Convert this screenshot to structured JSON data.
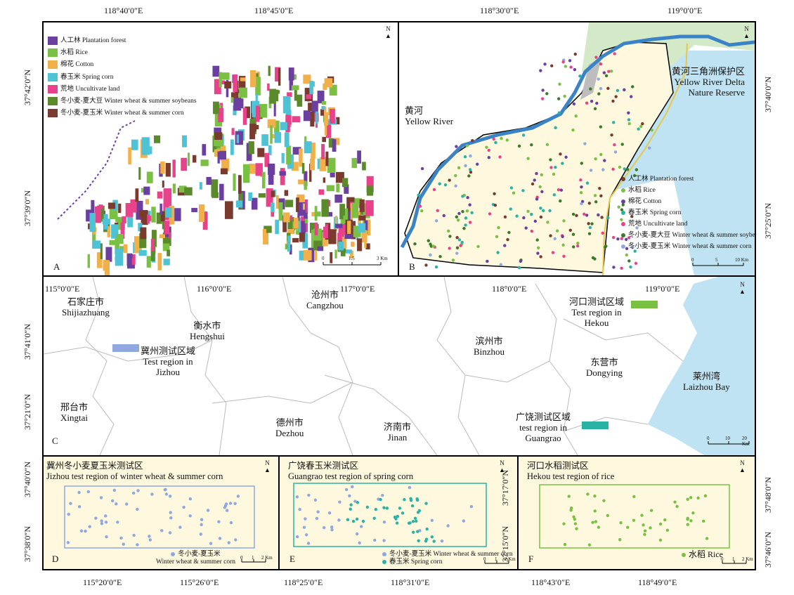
{
  "top_ticks": [
    "118°40′0″E",
    "118°45′0″E",
    "118°30′0″E",
    "119°0′0″E"
  ],
  "left_ticks_a": [
    "37°42′0″N",
    "37°39′0″N"
  ],
  "right_ticks_b": [
    "37°40′0″N",
    "37°25′0″N"
  ],
  "legend_a": [
    {
      "label": "人工林 Plantation forest",
      "color": "#6b3fa0"
    },
    {
      "label": "水稻 Rice",
      "color": "#7ac143"
    },
    {
      "label": "棉花 Cotton",
      "color": "#f2b04a"
    },
    {
      "label": "春玉米 Spring corn",
      "color": "#4fc3d6"
    },
    {
      "label": "荒地 Uncultivate land",
      "color": "#e8438a"
    },
    {
      "label": "冬小麦-夏大豆 Winter wheat & summer soybeans",
      "color": "#5a8a2a"
    },
    {
      "label": "冬小麦-夏玉米 Winter wheat & summer corn",
      "color": "#7a3b2e"
    }
  ],
  "legend_b": [
    {
      "label": "人工林 Plantation forest",
      "color": "#7a3b2e"
    },
    {
      "label": "水稻 Rice",
      "color": "#7ac143"
    },
    {
      "label": "棉花 Cotton",
      "color": "#6b3fa0"
    },
    {
      "label": "春玉米 Spring corn",
      "color": "#2ab3a5"
    },
    {
      "label": "荒地 Uncultivate land",
      "color": "#e8438a"
    },
    {
      "label": "冬小麦-夏大豆 Winter wheat & summer soybeans",
      "color": "#3a7a2a"
    },
    {
      "label": "冬小麦-夏玉米 Winter wheat & summer corn",
      "color": "#8fa8e0"
    }
  ],
  "panel_a": {
    "letter": "A",
    "scale": [
      "0",
      "1.5",
      "3 Km"
    ]
  },
  "panel_b": {
    "letter": "B",
    "river_cn": "黄河",
    "river_en": "Yellow River",
    "reserve_cn": "黄河三角洲保护区",
    "reserve_en1": "Yellow River Delta",
    "reserve_en2": "Nature Reserve",
    "scale": [
      "0",
      "5",
      "10 Km"
    ]
  },
  "panel_c": {
    "letter": "C",
    "top_ticks": [
      "115°0′0″E",
      "116°0′0″E",
      "117°0′0″E",
      "118°0′0″E",
      "119°0′0″E"
    ],
    "left_ticks": [
      "37°41′0″N",
      "37°21′0″N"
    ],
    "cities": [
      {
        "cn": "石家庄市",
        "en": "Shijiazhuang"
      },
      {
        "cn": "衡水市",
        "en": "Hengshui"
      },
      {
        "cn": "沧州市",
        "en": "Cangzhou"
      },
      {
        "cn": "滨州市",
        "en": "Binzhou"
      },
      {
        "cn": "东营市",
        "en": "Dongying"
      },
      {
        "cn": "邢台市",
        "en": "Xingtai"
      },
      {
        "cn": "德州市",
        "en": "Dezhou"
      },
      {
        "cn": "济南市",
        "en": "Jinan"
      },
      {
        "cn": "莱州湾",
        "en": "Laizhou Bay"
      }
    ],
    "regions": [
      {
        "cn": "冀州测试区域",
        "en1": "Test region in",
        "en2": "Jizhou",
        "color": "#8fa8e0"
      },
      {
        "cn": "河口测试区域",
        "en1": "Test region in",
        "en2": "Hekou",
        "color": "#7ac143"
      },
      {
        "cn": "广饶测试区域",
        "en1": "test region in",
        "en2": "Guangrao",
        "color": "#2ab3a5"
      }
    ],
    "scale": [
      "0",
      "10",
      "20 Km"
    ]
  },
  "panel_d": {
    "letter": "D",
    "title_cn": "冀州冬小麦夏玉米测试区",
    "title_en": "Jizhou test region of winter wheat & summer corn",
    "legend_cn": "冬小麦-夏玉米",
    "legend_en": "Winter wheat & summer corn",
    "color": "#8fa8e0",
    "left_ticks": [
      "37°40′0″N",
      "37°38′0″N"
    ],
    "bottom_ticks": [
      "115°20′0″E",
      "115°26′0″E"
    ],
    "scale": [
      "0",
      "1",
      "2 Km"
    ]
  },
  "panel_e": {
    "letter": "E",
    "title_cn": "广饶春玉米测试区",
    "title_en": "Guangrao test region of spring corn",
    "legend1": "冬小麦-夏玉米 Winter wheat & summer corn",
    "legend2": "春玉米 Spring corn",
    "left_ticks": [
      "37°17′0″N",
      "37°15′0″N"
    ],
    "bottom_ticks": [
      "118°25′0″E",
      "118°31′0″E"
    ],
    "scale": [
      "0",
      "1",
      "2 Km"
    ]
  },
  "panel_f": {
    "letter": "F",
    "title_cn": "河口水稻测试区",
    "title_en": "Hekou test region of rice",
    "legend": "水稻 Rice",
    "color": "#7ac143",
    "right_ticks": [
      "37°48′0″N",
      "37°46′0″N"
    ],
    "bottom_ticks": [
      "118°43′0″E",
      "118°49′0″E"
    ],
    "scale": [
      "0",
      "1",
      "2 Km"
    ]
  },
  "north": "N"
}
